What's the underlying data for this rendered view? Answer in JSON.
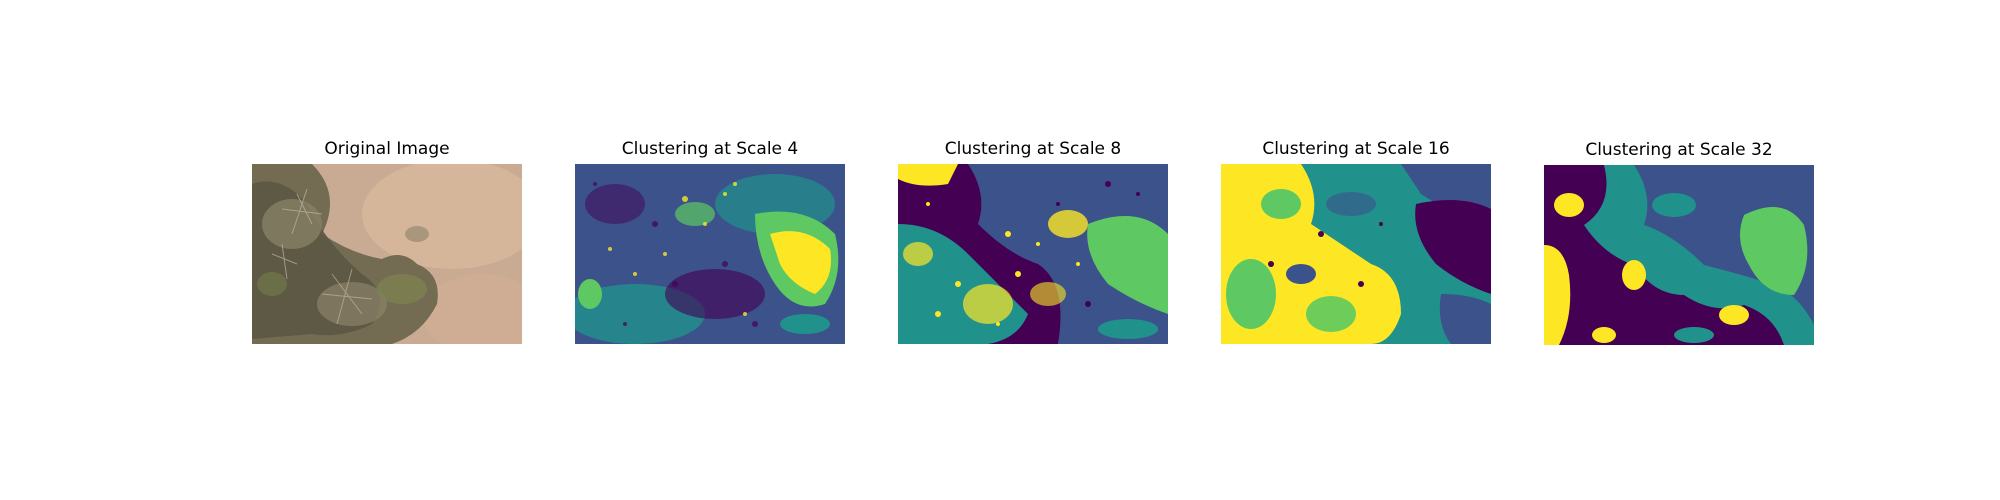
{
  "colormap": {
    "name": "viridis",
    "colors": [
      "#440154",
      "#3b528b",
      "#21918c",
      "#5ec962",
      "#fde725"
    ]
  },
  "photo_colors": {
    "soil": "#c7a890",
    "soil_light": "#d8b99e",
    "vegetation": "#6f6b50",
    "vegetation_dark": "#4f4e3a",
    "moss": "#7d8150",
    "branches": "#b9ad9a"
  },
  "panels": [
    {
      "title": "Original Image"
    },
    {
      "title": "Clustering at Scale 4"
    },
    {
      "title": "Clustering at Scale 8"
    },
    {
      "title": "Clustering at Scale 16"
    },
    {
      "title": "Clustering at Scale 32"
    }
  ]
}
